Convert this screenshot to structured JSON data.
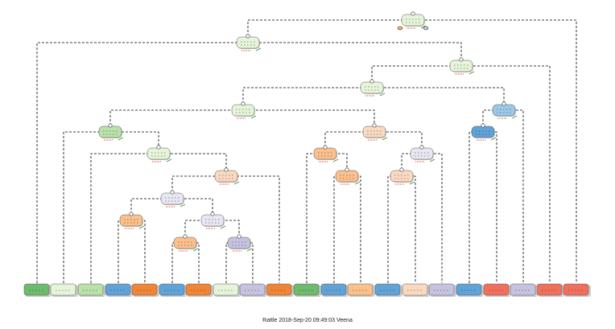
{
  "footer": {
    "caption": "Rattle 2018-Sep-20 09:49:03 Veena"
  },
  "palette": {
    "green_light": "#e6f5d9",
    "green_mid": "#b8e2a8",
    "green_dark": "#6dbb6d",
    "orange_light": "#fbd9c0",
    "orange_mid": "#fbc08c",
    "orange_dark": "#f08536",
    "blue_mid": "#9cc8ea",
    "blue_dark": "#5fa3d8",
    "lavender_light": "#e9e6f3",
    "lavender_mid": "#c5c3e0",
    "red": "#f0705c",
    "node_border": "#555555",
    "edge_color": "#000000",
    "split_label_color": "#e03020"
  },
  "nodes": [
    {
      "id": 1,
      "color": "green_light",
      "children": [
        2,
        31
      ]
    },
    {
      "id": 2,
      "color": "green_light",
      "children": [
        3,
        4
      ]
    },
    {
      "id": 3,
      "leaf": true,
      "color": "green_dark"
    },
    {
      "id": 4,
      "color": "green_light",
      "children": [
        5,
        30
      ]
    },
    {
      "id": 5,
      "color": "green_light",
      "children": [
        6,
        24
      ]
    },
    {
      "id": 6,
      "color": "green_light",
      "children": [
        7,
        14
      ]
    },
    {
      "id": 7,
      "color": "green_mid",
      "children": [
        8,
        9
      ]
    },
    {
      "id": 8,
      "leaf": true,
      "color": "green_light"
    },
    {
      "id": 9,
      "color": "green_light",
      "children": [
        10,
        11
      ]
    },
    {
      "id": 10,
      "leaf": true,
      "color": "green_mid"
    },
    {
      "id": 11,
      "color": "orange_light",
      "children": [
        12,
        13
      ]
    },
    {
      "id": 12,
      "color": "lavender_light",
      "children": [
        15,
        18
      ]
    },
    {
      "id": 13,
      "leaf": true,
      "color": "orange_dark"
    },
    {
      "id": 14,
      "color": "orange_light",
      "children": [
        19,
        22
      ]
    },
    {
      "id": 15,
      "color": "orange_mid",
      "children": [
        16,
        17
      ]
    },
    {
      "id": 16,
      "leaf": true,
      "color": "blue_dark"
    },
    {
      "id": 17,
      "leaf": true,
      "color": "orange_dark"
    },
    {
      "id": 18,
      "color": "lavender_light",
      "children": [
        20,
        21
      ]
    },
    {
      "id": 19,
      "color": "orange_mid",
      "children": [
        25,
        26
      ]
    },
    {
      "id": 20,
      "color": "orange_mid",
      "children": [
        27,
        28
      ]
    },
    {
      "id": 21,
      "color": "lavender_mid",
      "children": [
        29,
        32
      ]
    },
    {
      "id": 22,
      "color": "lavender_light",
      "children": [
        23,
        33
      ]
    },
    {
      "id": 23,
      "color": "orange_light",
      "children": [
        34,
        35
      ]
    },
    {
      "id": 24,
      "color": "blue_mid",
      "children": [
        36,
        39
      ]
    },
    {
      "id": 25,
      "leaf": true,
      "color": "green_dark"
    },
    {
      "id": 26,
      "color": "orange_mid",
      "children": [
        37,
        38
      ]
    },
    {
      "id": 27,
      "leaf": true,
      "color": "blue_dark"
    },
    {
      "id": 28,
      "leaf": true,
      "color": "orange_dark"
    },
    {
      "id": 29,
      "leaf": true,
      "color": "green_light"
    },
    {
      "id": 30,
      "leaf": true,
      "color": "red"
    },
    {
      "id": 31,
      "leaf": true,
      "color": "red"
    },
    {
      "id": 32,
      "leaf": true,
      "color": "lavender_mid"
    },
    {
      "id": 33,
      "leaf": true,
      "color": "lavender_mid"
    },
    {
      "id": 34,
      "leaf": true,
      "color": "blue_dark"
    },
    {
      "id": 35,
      "leaf": true,
      "color": "orange_light"
    },
    {
      "id": 36,
      "color": "blue_dark",
      "children": [
        40,
        41
      ]
    },
    {
      "id": 37,
      "leaf": true,
      "color": "blue_dark"
    },
    {
      "id": 38,
      "leaf": true,
      "color": "orange_mid"
    },
    {
      "id": 39,
      "leaf": true,
      "color": "lavender_mid"
    },
    {
      "id": 40,
      "leaf": true,
      "color": "blue_dark"
    },
    {
      "id": 41,
      "leaf": true,
      "color": "red"
    }
  ]
}
